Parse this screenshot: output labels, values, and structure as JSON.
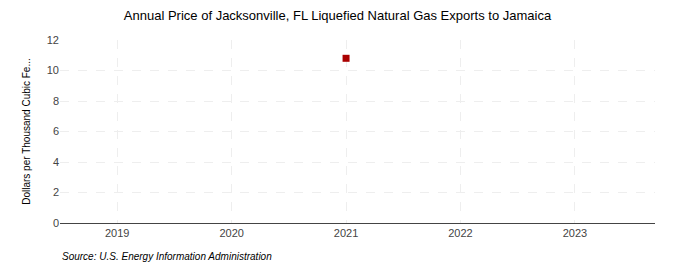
{
  "chart_data": {
    "type": "scatter",
    "title": "Annual Price of Jacksonville, FL Liquefied Natural Gas Exports to Jamaica",
    "ylabel": "Dollars per Thousand Cubic Fe...",
    "source": "Source: U.S. Energy Information Administration",
    "x": [
      2021
    ],
    "values": [
      10.8
    ],
    "color": "#aa0000",
    "marker": "square",
    "xlim": [
      2018.5,
      2023.7
    ],
    "xticks": [
      2019,
      2020,
      2021,
      2022,
      2023
    ],
    "ylim": [
      0,
      12
    ],
    "yticks": [
      0,
      2,
      4,
      6,
      8,
      10,
      12
    ],
    "grid": true
  }
}
